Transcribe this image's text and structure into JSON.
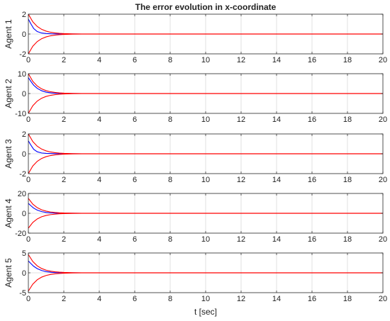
{
  "chart_data": {
    "type": "line",
    "title": "The error evolution in x-coordinate",
    "xlabel": "t [sec]",
    "xlim": [
      0,
      20
    ],
    "xticks": [
      0,
      2,
      4,
      6,
      8,
      10,
      12,
      14,
      16,
      18,
      20
    ],
    "grid": true,
    "colors": {
      "error": "#0000ff",
      "bound": "#ff0000"
    },
    "subplots": [
      {
        "ylabel": "Agent 1",
        "ylim": [
          -2,
          2
        ],
        "yticks": [
          -2,
          0,
          2
        ],
        "bound_upper": {
          "x": [
            0,
            0.25,
            0.5,
            0.75,
            1,
            1.25,
            1.5,
            1.75,
            2,
            2.5,
            3,
            4,
            6,
            20
          ],
          "y": [
            2,
            1.23,
            0.76,
            0.47,
            0.29,
            0.18,
            0.11,
            0.07,
            0.04,
            0.016,
            0.006,
            0.002,
            0.002,
            0.002
          ]
        },
        "bound_lower": {
          "x": [
            0,
            0.25,
            0.5,
            0.75,
            1,
            1.25,
            1.5,
            1.75,
            2,
            2.5,
            3,
            4,
            6,
            20
          ],
          "y": [
            -2,
            -1.23,
            -0.76,
            -0.47,
            -0.29,
            -0.18,
            -0.11,
            -0.07,
            -0.04,
            -0.016,
            -0.006,
            -0.002,
            -0.002,
            -0.002
          ]
        },
        "error": {
          "x": [
            0,
            0.15,
            0.3,
            0.5,
            0.75,
            1,
            1.3,
            1.6,
            2,
            2.5,
            3,
            20
          ],
          "y": [
            1.5,
            1.0,
            0.55,
            0.25,
            0.1,
            0.05,
            0.02,
            0.01,
            0.005,
            0.002,
            0,
            0
          ]
        }
      },
      {
        "ylabel": "Agent 2",
        "ylim": [
          -10,
          10
        ],
        "yticks": [
          -10,
          0,
          10
        ],
        "bound_upper": {
          "x": [
            0,
            0.25,
            0.5,
            0.75,
            1,
            1.25,
            1.5,
            1.75,
            2,
            2.5,
            3,
            4,
            6,
            20
          ],
          "y": [
            10,
            6.15,
            3.8,
            2.35,
            1.45,
            0.9,
            0.55,
            0.35,
            0.2,
            0.08,
            0.03,
            0.01,
            0.01,
            0.01
          ]
        },
        "bound_lower": {
          "x": [
            0,
            0.25,
            0.5,
            0.75,
            1,
            1.25,
            1.5,
            1.75,
            2,
            2.5,
            3,
            4,
            6,
            20
          ],
          "y": [
            -10,
            -6.15,
            -3.8,
            -2.35,
            -1.45,
            -0.9,
            -0.55,
            -0.35,
            -0.2,
            -0.08,
            -0.03,
            -0.01,
            -0.01,
            -0.01
          ]
        },
        "error": {
          "x": [
            0,
            0.15,
            0.3,
            0.5,
            0.75,
            1,
            1.3,
            1.6,
            2,
            2.5,
            3,
            20
          ],
          "y": [
            8,
            6.0,
            4.2,
            2.6,
            1.4,
            0.7,
            0.3,
            0.12,
            0.05,
            0.02,
            0,
            0
          ]
        }
      },
      {
        "ylabel": "Agent 3",
        "ylim": [
          -2,
          2
        ],
        "yticks": [
          -2,
          0,
          2
        ],
        "bound_upper": {
          "x": [
            0,
            0.25,
            0.5,
            0.75,
            1,
            1.25,
            1.5,
            1.75,
            2,
            2.5,
            3,
            4,
            6,
            20
          ],
          "y": [
            2,
            1.23,
            0.76,
            0.47,
            0.29,
            0.18,
            0.11,
            0.07,
            0.04,
            0.016,
            0.006,
            0.002,
            0.002,
            0.002
          ]
        },
        "bound_lower": {
          "x": [
            0,
            0.25,
            0.5,
            0.75,
            1,
            1.25,
            1.5,
            1.75,
            2,
            2.5,
            3,
            4,
            6,
            20
          ],
          "y": [
            -2,
            -1.23,
            -0.76,
            -0.47,
            -0.29,
            -0.18,
            -0.11,
            -0.07,
            -0.04,
            -0.016,
            -0.006,
            -0.002,
            -0.002,
            -0.002
          ]
        },
        "error": {
          "x": [
            0,
            0.15,
            0.3,
            0.5,
            0.75,
            1,
            1.3,
            1.6,
            2,
            2.5,
            3,
            20
          ],
          "y": [
            1.3,
            0.85,
            0.45,
            0.2,
            0.08,
            0.04,
            0.02,
            0.01,
            0.005,
            0.002,
            0,
            0
          ]
        }
      },
      {
        "ylabel": "Agent 4",
        "ylim": [
          -20,
          20
        ],
        "yticks": [
          -20,
          0,
          20
        ],
        "bound_upper": {
          "x": [
            0,
            0.25,
            0.5,
            0.75,
            1,
            1.25,
            1.5,
            1.75,
            2,
            2.5,
            3,
            4,
            6,
            20
          ],
          "y": [
            15,
            9.2,
            5.7,
            3.5,
            2.2,
            1.35,
            0.83,
            0.5,
            0.3,
            0.12,
            0.05,
            0.02,
            0.02,
            0.02
          ]
        },
        "bound_lower": {
          "x": [
            0,
            0.25,
            0.5,
            0.75,
            1,
            1.25,
            1.5,
            1.75,
            2,
            2.5,
            3,
            4,
            6,
            20
          ],
          "y": [
            -15,
            -9.2,
            -5.7,
            -3.5,
            -2.2,
            -1.35,
            -0.83,
            -0.5,
            -0.3,
            -0.12,
            -0.05,
            -0.02,
            -0.02,
            -0.02
          ]
        },
        "error": {
          "x": [
            0,
            0.15,
            0.3,
            0.5,
            0.75,
            1,
            1.3,
            1.6,
            2,
            2.5,
            3,
            20
          ],
          "y": [
            10,
            7.5,
            5.2,
            3.2,
            1.7,
            0.85,
            0.35,
            0.15,
            0.06,
            0.02,
            0,
            0
          ]
        }
      },
      {
        "ylabel": "Agent 5",
        "ylim": [
          -5,
          5
        ],
        "yticks": [
          -5,
          0,
          5
        ],
        "bound_upper": {
          "x": [
            0,
            0.25,
            0.5,
            0.75,
            1,
            1.25,
            1.5,
            1.75,
            2,
            2.5,
            3,
            4,
            6,
            20
          ],
          "y": [
            4.6,
            2.85,
            1.75,
            1.08,
            0.67,
            0.41,
            0.25,
            0.16,
            0.1,
            0.04,
            0.015,
            0.005,
            0.005,
            0.005
          ]
        },
        "bound_lower": {
          "x": [
            0,
            0.25,
            0.5,
            0.75,
            1,
            1.25,
            1.5,
            1.75,
            2,
            2.5,
            3,
            4,
            6,
            20
          ],
          "y": [
            -4.6,
            -2.85,
            -1.75,
            -1.08,
            -0.67,
            -0.41,
            -0.25,
            -0.16,
            -0.1,
            -0.04,
            -0.015,
            -0.005,
            -0.005,
            -0.005
          ]
        },
        "error": {
          "x": [
            0,
            0.15,
            0.3,
            0.5,
            0.75,
            1,
            1.3,
            1.6,
            2,
            2.5,
            3,
            20
          ],
          "y": [
            3,
            2.3,
            1.65,
            1.05,
            0.58,
            0.3,
            0.13,
            0.05,
            0.02,
            0.005,
            0,
            0
          ]
        }
      }
    ]
  }
}
